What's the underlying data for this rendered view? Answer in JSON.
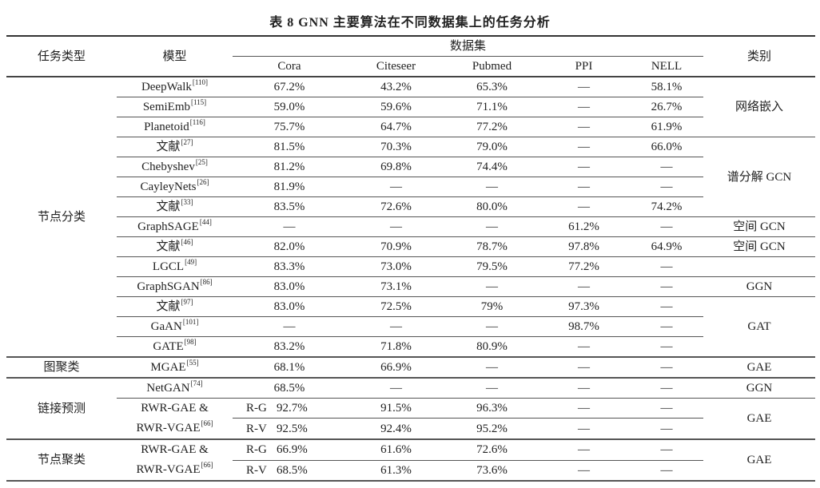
{
  "title": "表 8   GNN 主要算法在不同数据集上的任务分析",
  "header": {
    "task": "任务类型",
    "model": "模型",
    "datasets": "数据集",
    "category": "类别",
    "columns": [
      "Cora",
      "Citeseer",
      "Pubmed",
      "PPI",
      "NELL"
    ]
  },
  "groups": [
    {
      "task": "节点分类",
      "categories": [
        {
          "label": "网络嵌入",
          "rows": 3
        },
        {
          "label": "谱分解 GCN",
          "rows": 4
        },
        {
          "label": "空间 GCN",
          "rows": 1
        },
        {
          "label": "空间 GCN",
          "rows": 1
        },
        {
          "label": "",
          "rows": 1
        },
        {
          "label": "GGN",
          "rows": 1
        },
        {
          "label": "GAT",
          "rows": 3
        }
      ],
      "rows": [
        {
          "model": "DeepWalk",
          "ref": "[110]",
          "values": [
            "67.2%",
            "43.2%",
            "65.3%",
            "—",
            "58.1%"
          ]
        },
        {
          "model": "SemiEmb",
          "ref": "[115]",
          "values": [
            "59.0%",
            "59.6%",
            "71.1%",
            "—",
            "26.7%"
          ]
        },
        {
          "model": "Planetoid",
          "ref": "[116]",
          "values": [
            "75.7%",
            "64.7%",
            "77.2%",
            "—",
            "61.9%"
          ]
        },
        {
          "model": "文献",
          "ref": "[27]",
          "values": [
            "81.5%",
            "70.3%",
            "79.0%",
            "—",
            "66.0%"
          ]
        },
        {
          "model": "Chebyshev",
          "ref": "[25]",
          "values": [
            "81.2%",
            "69.8%",
            "74.4%",
            "—",
            "—"
          ]
        },
        {
          "model": "CayleyNets",
          "ref": "[26]",
          "values": [
            "81.9%",
            "—",
            "—",
            "—",
            "—"
          ]
        },
        {
          "model": "文献",
          "ref": "[33]",
          "values": [
            "83.5%",
            "72.6%",
            "80.0%",
            "—",
            "74.2%"
          ]
        },
        {
          "model": "GraphSAGE",
          "ref": "[44]",
          "values": [
            "—",
            "—",
            "—",
            "61.2%",
            "—"
          ]
        },
        {
          "model": "文献",
          "ref": "[46]",
          "values": [
            "82.0%",
            "70.9%",
            "78.7%",
            "97.8%",
            "64.9%"
          ]
        },
        {
          "model": "LGCL",
          "ref": "[49]",
          "values": [
            "83.3%",
            "73.0%",
            "79.5%",
            "77.2%",
            "—"
          ]
        },
        {
          "model": "GraphSGAN",
          "ref": "[86]",
          "values": [
            "83.0%",
            "73.1%",
            "—",
            "—",
            "—"
          ]
        },
        {
          "model": "文献",
          "ref": "[97]",
          "values": [
            "83.0%",
            "72.5%",
            "79%",
            "97.3%",
            "—"
          ]
        },
        {
          "model": "GaAN",
          "ref": "[101]",
          "values": [
            "—",
            "—",
            "—",
            "98.7%",
            "—"
          ]
        },
        {
          "model": "GATE",
          "ref": "[98]",
          "values": [
            "83.2%",
            "71.8%",
            "80.9%",
            "—",
            "—"
          ]
        }
      ]
    },
    {
      "task": "图聚类",
      "categories": [
        {
          "label": "GAE",
          "rows": 1
        }
      ],
      "rows": [
        {
          "model": "MGAE",
          "ref": "[55]",
          "values": [
            "68.1%",
            "66.9%",
            "—",
            "—",
            "—"
          ]
        }
      ]
    },
    {
      "task": "链接预测",
      "categories": [
        {
          "label": "GGN",
          "rows": 1
        },
        {
          "label": "GAE",
          "rows": 2
        }
      ],
      "rows": [
        {
          "model": "NetGAN",
          "ref": "[74]",
          "values": [
            "68.5%",
            "—",
            "—",
            "—",
            "—"
          ]
        },
        {
          "model": "RWR-GAE &",
          "model2": "RWR-VGAE",
          "ref": "[66]",
          "sub": "R-G",
          "values": [
            "92.7%",
            "91.5%",
            "96.3%",
            "—",
            "—"
          ]
        },
        {
          "sub": "R-V",
          "values": [
            "92.5%",
            "92.4%",
            "95.2%",
            "—",
            "—"
          ]
        }
      ]
    },
    {
      "task": "节点聚类",
      "categories": [
        {
          "label": "GAE",
          "rows": 2
        }
      ],
      "rows": [
        {
          "model": "RWR-GAE &",
          "model2": "RWR-VGAE",
          "ref": "[66]",
          "sub": "R-G",
          "values": [
            "66.9%",
            "61.6%",
            "72.6%",
            "—",
            "—"
          ]
        },
        {
          "sub": "R-V",
          "values": [
            "68.5%",
            "61.3%",
            "73.6%",
            "—",
            "—"
          ]
        }
      ]
    }
  ]
}
